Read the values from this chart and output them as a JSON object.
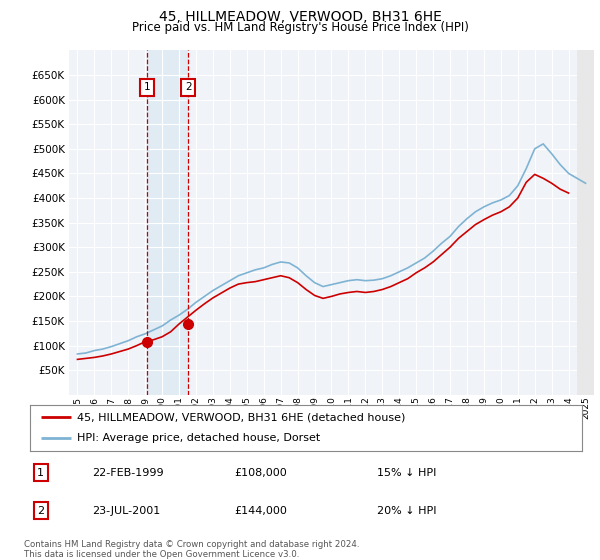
{
  "title": "45, HILLMEADOW, VERWOOD, BH31 6HE",
  "subtitle": "Price paid vs. HM Land Registry's House Price Index (HPI)",
  "ylim": [
    0,
    700000
  ],
  "yticks": [
    50000,
    100000,
    150000,
    200000,
    250000,
    300000,
    350000,
    400000,
    450000,
    500000,
    550000,
    600000,
    650000
  ],
  "xlim_start": 1994.5,
  "xlim_end": 2025.5,
  "purchase1_date": 1999.13,
  "purchase1_price": 108000,
  "purchase2_date": 2001.55,
  "purchase2_price": 144000,
  "legend_house": "45, HILLMEADOW, VERWOOD, BH31 6HE (detached house)",
  "legend_hpi": "HPI: Average price, detached house, Dorset",
  "transaction1_label": "1",
  "transaction1_date_str": "22-FEB-1999",
  "transaction1_price_str": "£108,000",
  "transaction1_hpi_str": "15% ↓ HPI",
  "transaction2_label": "2",
  "transaction2_date_str": "23-JUL-2001",
  "transaction2_price_str": "£144,000",
  "transaction2_hpi_str": "20% ↓ HPI",
  "footnote": "Contains HM Land Registry data © Crown copyright and database right 2024.\nThis data is licensed under the Open Government Licence v3.0.",
  "line_color_house": "#cc0000",
  "line_color_hpi": "#7fb3d3",
  "marker_color_house": "#cc0000",
  "background_color": "#f0f4f8",
  "grid_color": "#ffffff",
  "shaded_region_color": "#c8dff0",
  "box_color": "#cc0000",
  "hatch_color": "#cccccc",
  "hpi_years": [
    1995,
    1995.5,
    1996,
    1996.5,
    1997,
    1997.5,
    1998,
    1998.5,
    1999,
    1999.5,
    2000,
    2000.5,
    2001,
    2001.5,
    2002,
    2002.5,
    2003,
    2003.5,
    2004,
    2004.5,
    2005,
    2005.5,
    2006,
    2006.5,
    2007,
    2007.5,
    2008,
    2008.5,
    2009,
    2009.5,
    2010,
    2010.5,
    2011,
    2011.5,
    2012,
    2012.5,
    2013,
    2013.5,
    2014,
    2014.5,
    2015,
    2015.5,
    2016,
    2016.5,
    2017,
    2017.5,
    2018,
    2018.5,
    2019,
    2019.5,
    2020,
    2020.5,
    2021,
    2021.5,
    2022,
    2022.5,
    2023,
    2023.5,
    2024,
    2024.5,
    2025
  ],
  "hpi_values": [
    83000,
    85000,
    90000,
    93000,
    98000,
    104000,
    110000,
    118000,
    124000,
    132000,
    140000,
    152000,
    162000,
    174000,
    188000,
    200000,
    212000,
    222000,
    232000,
    242000,
    248000,
    254000,
    258000,
    265000,
    270000,
    268000,
    258000,
    242000,
    228000,
    220000,
    224000,
    228000,
    232000,
    234000,
    232000,
    233000,
    236000,
    242000,
    250000,
    258000,
    268000,
    278000,
    292000,
    308000,
    322000,
    342000,
    358000,
    372000,
    382000,
    390000,
    396000,
    405000,
    425000,
    460000,
    500000,
    510000,
    490000,
    468000,
    450000,
    440000,
    430000
  ],
  "house_years": [
    1995,
    1995.5,
    1996,
    1996.5,
    1997,
    1997.5,
    1998,
    1998.5,
    1999,
    1999.5,
    2000,
    2000.5,
    2001,
    2001.5,
    2002,
    2002.5,
    2003,
    2003.5,
    2004,
    2004.5,
    2005,
    2005.5,
    2006,
    2006.5,
    2007,
    2007.5,
    2008,
    2008.5,
    2009,
    2009.5,
    2010,
    2010.5,
    2011,
    2011.5,
    2012,
    2012.5,
    2013,
    2013.5,
    2014,
    2014.5,
    2015,
    2015.5,
    2016,
    2016.5,
    2017,
    2017.5,
    2018,
    2018.5,
    2019,
    2019.5,
    2020,
    2020.5,
    2021,
    2021.5,
    2022,
    2022.5,
    2023,
    2023.5,
    2024
  ],
  "house_values": [
    72000,
    74000,
    76000,
    79000,
    83000,
    88000,
    93000,
    100000,
    108000,
    112000,
    118000,
    128000,
    144000,
    158000,
    172000,
    185000,
    197000,
    207000,
    217000,
    225000,
    228000,
    230000,
    234000,
    238000,
    242000,
    238000,
    228000,
    214000,
    202000,
    196000,
    200000,
    205000,
    208000,
    210000,
    208000,
    210000,
    214000,
    220000,
    228000,
    236000,
    248000,
    258000,
    270000,
    285000,
    300000,
    318000,
    332000,
    346000,
    356000,
    365000,
    372000,
    382000,
    400000,
    432000,
    448000,
    440000,
    430000,
    418000,
    410000
  ]
}
